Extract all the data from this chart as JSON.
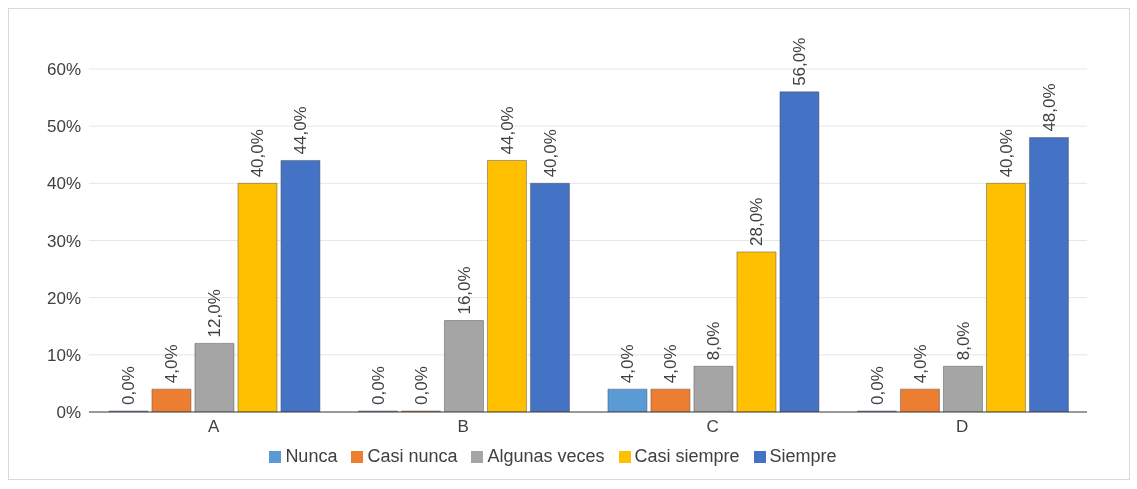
{
  "chart_data": {
    "type": "bar",
    "categories": [
      "A",
      "B",
      "C",
      "D"
    ],
    "series": [
      {
        "name": "Nunca",
        "color": "#5b9bd5",
        "values": [
          0,
          0,
          4,
          0
        ],
        "value_labels": [
          "0,0%",
          "0,0%",
          "4,0%",
          "0,0%"
        ]
      },
      {
        "name": "Casi nunca",
        "color": "#ed7d31",
        "values": [
          4,
          0,
          4,
          4
        ],
        "value_labels": [
          "4,0%",
          "0,0%",
          "4,0%",
          "4,0%"
        ]
      },
      {
        "name": "Algunas veces",
        "color": "#a5a5a5",
        "values": [
          12,
          16,
          8,
          8
        ],
        "value_labels": [
          "12,0%",
          "16,0%",
          "8,0%",
          "8,0%"
        ]
      },
      {
        "name": "Casi siempre",
        "color": "#ffc000",
        "values": [
          40,
          44,
          28,
          40
        ],
        "value_labels": [
          "40,0%",
          "44,0%",
          "28,0%",
          "40,0%"
        ]
      },
      {
        "name": "Siempre",
        "color": "#4472c4",
        "values": [
          44,
          40,
          56,
          48
        ],
        "value_labels": [
          "44,0%",
          "40,0%",
          "56,0%",
          "48,0%"
        ]
      }
    ],
    "ylim": [
      0,
      60
    ],
    "yticks": [
      {
        "value": 0,
        "label": "0%"
      },
      {
        "value": 10,
        "label": "10%"
      },
      {
        "value": 20,
        "label": "20%"
      },
      {
        "value": 30,
        "label": "30%"
      },
      {
        "value": 40,
        "label": "40%"
      },
      {
        "value": 50,
        "label": "50%"
      },
      {
        "value": 60,
        "label": "60%"
      }
    ],
    "grid": "y",
    "legend": "bottom"
  }
}
